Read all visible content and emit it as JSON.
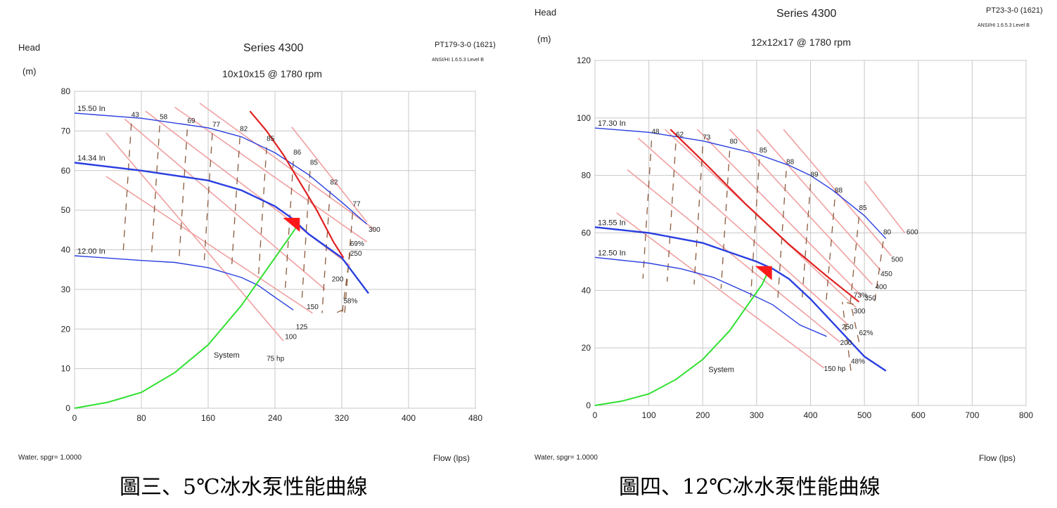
{
  "captions": {
    "left": "圖三、5℃冰水泵性能曲線",
    "right": "圖四、12℃冰水泵性能曲線"
  },
  "chart_data": [
    {
      "type": "line",
      "title": "Series 4300",
      "subtitle": "10x10x15 @ 1780 rpm",
      "model": "PT179-3-0 (1621)",
      "standard": "ANSI/HI 1.6.5.3 Level B",
      "ylabel": "Head",
      "ylabel_unit": "(m)",
      "xlabel": "Flow (lps)",
      "fluid": "Water, spgr= 1.0000",
      "xlim": [
        0,
        480
      ],
      "ylim": [
        0,
        80
      ],
      "xticks": [
        "0",
        "80",
        "160",
        "240",
        "320",
        "400",
        "480"
      ],
      "yticks": [
        "0",
        "10",
        "20",
        "30",
        "40",
        "50",
        "60",
        "70",
        "80"
      ],
      "grid": true,
      "impeller_curves": [
        {
          "label": "15.50 In",
          "x": [
            0,
            80,
            160,
            200,
            240,
            280,
            320,
            350
          ],
          "y": [
            74.5,
            73.2,
            70.8,
            68.5,
            64.5,
            59,
            52,
            46.5
          ]
        },
        {
          "label": "14.34 In",
          "x": [
            0,
            80,
            160,
            200,
            240,
            260,
            280,
            320,
            352
          ],
          "y": [
            62,
            60,
            57.5,
            55,
            51,
            48,
            44,
            38,
            29
          ]
        },
        {
          "label": "12.00 In",
          "x": [
            0,
            80,
            120,
            160,
            200,
            220,
            240,
            262
          ],
          "y": [
            38.5,
            37.3,
            36.8,
            35.5,
            33,
            31,
            28,
            24.8
          ]
        }
      ],
      "efficiency_labels": [
        {
          "label": "43",
          "x": 68,
          "y": 73.5
        },
        {
          "label": "58",
          "x": 102,
          "y": 73
        },
        {
          "label": "69",
          "x": 135,
          "y": 72
        },
        {
          "label": "77",
          "x": 165,
          "y": 71
        },
        {
          "label": "82",
          "x": 198,
          "y": 70
        },
        {
          "label": "85",
          "x": 230,
          "y": 67.5
        },
        {
          "label": "86",
          "x": 262,
          "y": 64
        },
        {
          "label": "85",
          "x": 282,
          "y": 61.5
        },
        {
          "label": "82",
          "x": 306,
          "y": 56.5
        },
        {
          "label": "77",
          "x": 333,
          "y": 51
        },
        {
          "label": "69%",
          "x": 330,
          "y": 41
        },
        {
          "label": "58%",
          "x": 322,
          "y": 26.5
        }
      ],
      "power_labels": [
        {
          "label": "300",
          "x": 352,
          "y": 44.5
        },
        {
          "label": "250",
          "x": 330,
          "y": 38.5
        },
        {
          "label": "200",
          "x": 308,
          "y": 32
        },
        {
          "label": "150",
          "x": 278,
          "y": 25
        },
        {
          "label": "125",
          "x": 265,
          "y": 20
        },
        {
          "label": "100",
          "x": 252,
          "y": 17.5
        },
        {
          "label": "75 hp",
          "x": 230,
          "y": 12
        }
      ],
      "power_lines": [
        {
          "x": [
            38,
            250
          ],
          "y": [
            69.5,
            17
          ]
        },
        {
          "x": [
            38,
            285
          ],
          "y": [
            58.5,
            24
          ]
        },
        {
          "x": [
            60,
            300
          ],
          "y": [
            73,
            30
          ]
        },
        {
          "x": [
            85,
            330
          ],
          "y": [
            75,
            36
          ]
        },
        {
          "x": [
            120,
            350
          ],
          "y": [
            76,
            42
          ]
        },
        {
          "x": [
            150,
            360
          ],
          "y": [
            77,
            45
          ]
        },
        {
          "x": [
            260,
            350
          ],
          "y": [
            71,
            47
          ]
        }
      ],
      "red_curve": {
        "x": [
          210,
          230,
          250,
          270,
          290,
          310,
          322
        ],
        "y": [
          75,
          70,
          64,
          57,
          50,
          42,
          38
        ]
      },
      "system_curve": {
        "label": "System",
        "x": [
          0,
          40,
          80,
          120,
          160,
          200,
          230,
          260,
          268
        ],
        "y": [
          0,
          1.5,
          4,
          9,
          16,
          26,
          35,
          44,
          46.5
        ]
      },
      "operating_point": {
        "x": 263,
        "y": 47
      }
    },
    {
      "type": "line",
      "title": "Series 4300",
      "subtitle": "12x12x17 @ 1780 rpm",
      "model": "PT23-3-0 (1621)",
      "standard": "ANSI/HI 1.6.5.3 Level B",
      "ylabel": "Head",
      "ylabel_unit": "(m)",
      "xlabel": "Flow (lps)",
      "fluid": "Water, spgr= 1.0000",
      "xlim": [
        0,
        800
      ],
      "ylim": [
        0,
        120
      ],
      "xticks": [
        "0",
        "100",
        "200",
        "300",
        "400",
        "500",
        "600",
        "700",
        "800"
      ],
      "yticks": [
        "0",
        "20",
        "40",
        "60",
        "80",
        "100",
        "120"
      ],
      "grid": true,
      "impeller_curves": [
        {
          "label": "17.30 In",
          "x": [
            0,
            100,
            200,
            300,
            360,
            400,
            440,
            500,
            540
          ],
          "y": [
            96.5,
            95,
            92,
            87.5,
            83.5,
            80,
            75,
            66,
            58
          ]
        },
        {
          "label": "13.55 In",
          "x": [
            0,
            100,
            200,
            300,
            330,
            360,
            400,
            460,
            500,
            540
          ],
          "y": [
            62,
            60,
            56.5,
            50,
            47.5,
            44,
            37,
            25,
            17,
            12
          ]
        },
        {
          "label": "12.50 In",
          "x": [
            0,
            100,
            160,
            220,
            280,
            330,
            380,
            430
          ],
          "y": [
            51.5,
            49.5,
            47.5,
            44.5,
            39.5,
            35,
            28,
            24
          ]
        }
      ],
      "efficiency_labels": [
        {
          "label": "48",
          "x": 105,
          "y": 94.5
        },
        {
          "label": "62",
          "x": 150,
          "y": 93.5
        },
        {
          "label": "73",
          "x": 200,
          "y": 92.5
        },
        {
          "label": "80",
          "x": 250,
          "y": 91
        },
        {
          "label": "85",
          "x": 305,
          "y": 88
        },
        {
          "label": "88",
          "x": 355,
          "y": 84
        },
        {
          "label": "89",
          "x": 400,
          "y": 79.5
        },
        {
          "label": "88",
          "x": 445,
          "y": 74
        },
        {
          "label": "85",
          "x": 490,
          "y": 68
        },
        {
          "label": "80",
          "x": 535,
          "y": 59.5
        },
        {
          "label": "73%",
          "x": 480,
          "y": 37.5
        },
        {
          "label": "62%",
          "x": 490,
          "y": 24.5
        },
        {
          "label": "48%",
          "x": 475,
          "y": 14.5
        }
      ],
      "power_labels": [
        {
          "label": "600",
          "x": 578,
          "y": 59.5
        },
        {
          "label": "500",
          "x": 550,
          "y": 50
        },
        {
          "label": "450",
          "x": 530,
          "y": 45
        },
        {
          "label": "400",
          "x": 520,
          "y": 40.5
        },
        {
          "label": "350",
          "x": 500,
          "y": 36.5
        },
        {
          "label": "300",
          "x": 480,
          "y": 32
        },
        {
          "label": "250",
          "x": 458,
          "y": 26.5
        },
        {
          "label": "200",
          "x": 455,
          "y": 21
        },
        {
          "label": "150 hp",
          "x": 425,
          "y": 12
        }
      ],
      "power_lines": [
        {
          "x": [
            40,
            425
          ],
          "y": [
            67,
            13
          ]
        },
        {
          "x": [
            60,
            455
          ],
          "y": [
            82,
            22
          ]
        },
        {
          "x": [
            80,
            470
          ],
          "y": [
            93,
            28
          ]
        },
        {
          "x": [
            130,
            485
          ],
          "y": [
            96,
            34
          ]
        },
        {
          "x": [
            190,
            495
          ],
          "y": [
            96,
            38
          ]
        },
        {
          "x": [
            250,
            515
          ],
          "y": [
            96,
            42
          ]
        },
        {
          "x": [
            300,
            530
          ],
          "y": [
            96,
            47
          ]
        },
        {
          "x": [
            350,
            550
          ],
          "y": [
            96,
            52
          ]
        },
        {
          "x": [
            500,
            575
          ],
          "y": [
            78,
            60
          ]
        }
      ],
      "red_curve": {
        "x": [
          140,
          200,
          280,
          360,
          430,
          490
        ],
        "y": [
          96,
          85,
          70,
          56,
          45,
          36
        ]
      },
      "system_curve": {
        "label": "System",
        "x": [
          0,
          50,
          100,
          150,
          200,
          250,
          280,
          310,
          320
        ],
        "y": [
          0,
          1.5,
          4,
          9,
          16,
          26,
          34,
          42,
          46
        ]
      },
      "operating_point": {
        "x": 318,
        "y": 47
      }
    }
  ]
}
